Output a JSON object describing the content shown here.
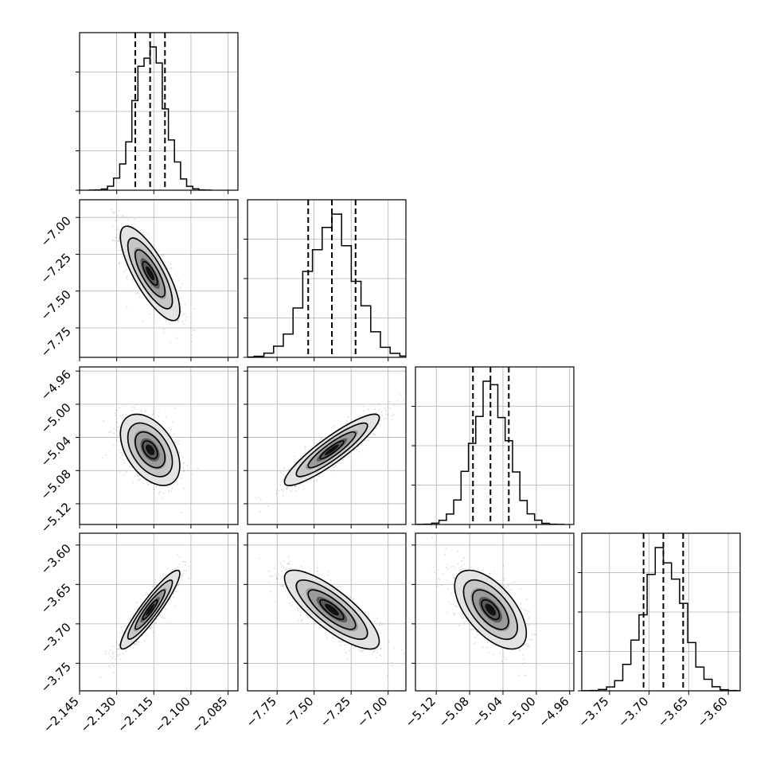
{
  "chart_data": {
    "type": "corner",
    "title": "",
    "n_params": 4,
    "params": [
      {
        "mean": -2.1165,
        "q16": -2.1225,
        "q50": -2.1165,
        "q84": -2.1105,
        "range": [
          -2.145,
          -2.081
        ],
        "ticks": [
          -2.145,
          -2.13,
          -2.115,
          -2.1,
          -2.085
        ],
        "tick_labels": [
          "−2.145",
          "−2.130",
          "−2.115",
          "−2.100",
          "−2.085"
        ]
      },
      {
        "mean": -7.38,
        "q16": -7.54,
        "q50": -7.38,
        "q84": -7.22,
        "range": [
          -7.95,
          -6.88
        ],
        "ticks": [
          -7.75,
          -7.5,
          -7.25,
          -7.0
        ],
        "tick_labels": [
          "−7.75",
          "−7.50",
          "−7.25",
          "−7.00"
        ]
      },
      {
        "mean": -5.055,
        "q16": -5.076,
        "q50": -5.055,
        "q84": -5.033,
        "range": [
          -5.145,
          -4.955
        ],
        "ticks": [
          -5.12,
          -5.08,
          -5.04,
          -5.0,
          -4.96
        ],
        "tick_labels": [
          "−5.12",
          "−5.08",
          "−5.04",
          "−5.00",
          "−4.96"
        ]
      },
      {
        "mean": -3.682,
        "q16": -3.707,
        "q50": -3.682,
        "q84": -3.657,
        "range": [
          -3.785,
          -3.585
        ],
        "ticks": [
          -3.75,
          -3.7,
          -3.65,
          -3.6
        ],
        "tick_labels": [
          "−3.75",
          "−3.70",
          "−3.65",
          "−3.60"
        ]
      }
    ],
    "correlations": [
      [
        1.0,
        -0.78,
        -0.45,
        0.92
      ],
      [
        -0.78,
        1.0,
        0.9,
        -0.8
      ],
      [
        -0.45,
        0.9,
        1.0,
        -0.6
      ],
      [
        0.92,
        -0.8,
        -0.6,
        1.0
      ]
    ],
    "grid": true,
    "quantile_lines": "dashed",
    "colors": {
      "ink": "#000000",
      "grid": "#b0b0b0",
      "points": "#7f7f7f"
    }
  }
}
